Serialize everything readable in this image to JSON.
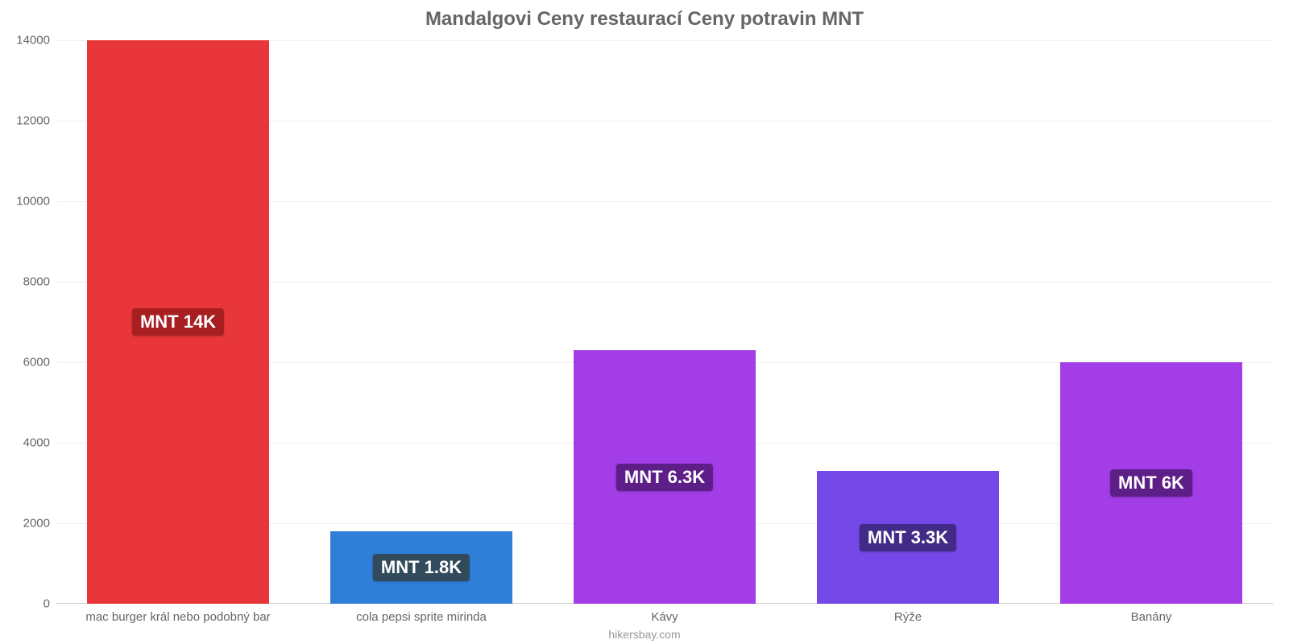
{
  "chart": {
    "type": "bar",
    "title": "Mandalgovi Ceny restaurací Ceny potravin MNT",
    "title_fontsize": 24,
    "title_color": "#666666",
    "background_color": "#ffffff",
    "grid_color": "#f0f0f0",
    "axis_color": "#cccccc",
    "tick_font_color": "#666666",
    "tick_fontsize": 15,
    "xlabel_fontsize": 15,
    "bar_width": 0.75,
    "ylim": [
      0,
      14000
    ],
    "ytick_step": 2000,
    "yticks": [
      0,
      2000,
      4000,
      6000,
      8000,
      10000,
      12000,
      14000
    ],
    "categories": [
      "mac burger král nebo podobný bar",
      "cola pepsi sprite mirinda",
      "Kávy",
      "Rýže",
      "Banány"
    ],
    "values": [
      14000,
      1800,
      6300,
      3300,
      6000
    ],
    "bar_colors": [
      "#e8363b",
      "#2f7ed8",
      "#a23de8",
      "#7548e8",
      "#a23de8"
    ],
    "value_labels": [
      "MNT 14K",
      "MNT 1.8K",
      "MNT 6.3K",
      "MNT 3.3K",
      "MNT 6K"
    ],
    "value_label_bg": [
      "#a81f22",
      "#324b5c",
      "#5d1e87",
      "#422a87",
      "#5d1e87"
    ],
    "value_label_fontsize": 22,
    "value_label_color": "#ffffff",
    "footer": "hikersbay.com",
    "footer_color": "#999999",
    "footer_fontsize": 14
  }
}
